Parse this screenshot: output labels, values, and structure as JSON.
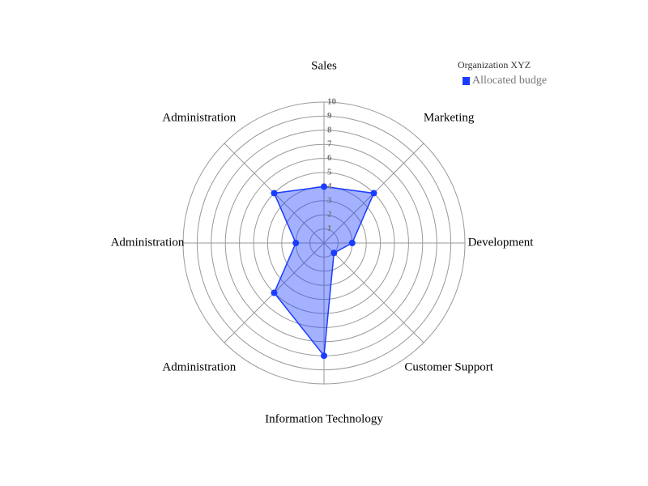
{
  "chart_data": {
    "type": "radar",
    "categories": [
      "Sales",
      "Marketing",
      "Development",
      "Customer Support",
      "Information Technology",
      "Administration",
      "Administration",
      "Administration"
    ],
    "legend_title": "Organization XYZ",
    "series": [
      {
        "name": "Allocated budget",
        "color": "#1a3cff",
        "values": [
          4,
          5,
          2,
          1,
          8,
          5,
          2,
          5
        ]
      }
    ],
    "ylim": [
      0,
      10
    ],
    "yticks": [
      1,
      2,
      3,
      4,
      5,
      6,
      7,
      8,
      9,
      10
    ],
    "grid": true,
    "legend": "upper right"
  }
}
